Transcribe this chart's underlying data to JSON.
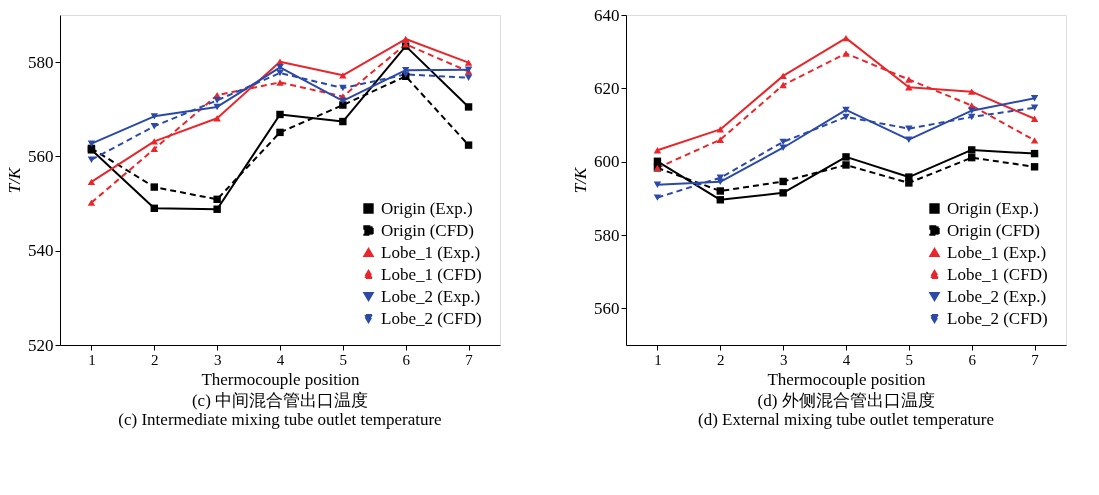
{
  "chart_data": [
    {
      "type": "line",
      "xlabel": "Thermocouple position",
      "ylabel": "T/K",
      "x": [
        1,
        2,
        3,
        4,
        5,
        6,
        7
      ],
      "xlim": [
        0.5,
        7.5
      ],
      "xticks": [
        1,
        2,
        3,
        4,
        5,
        6,
        7
      ],
      "ylim": [
        520,
        590
      ],
      "yticks": [
        520,
        540,
        560,
        580
      ],
      "grid": false,
      "legend": "bottom right",
      "annotations": [
        "(c) 中间混合管出口温度",
        "(c) Intermediate mixing tube outlet temperature"
      ],
      "series": [
        {
          "name": "Origin (Exp.)",
          "color": "#000000",
          "line_style": "solid",
          "marker": "square",
          "values": [
            561.4,
            549.0,
            548.8,
            568.9,
            567.4,
            583.4,
            570.5
          ]
        },
        {
          "name": "Origin (CFD)",
          "color": "#000000",
          "line_style": "dashed",
          "marker": "square",
          "values": [
            561.7,
            553.5,
            550.9,
            565.1,
            570.9,
            577.0,
            562.4
          ]
        },
        {
          "name": "Lobe_1 (Exp.)",
          "color": "#e8262b",
          "line_style": "solid",
          "marker": "triangle",
          "values": [
            554.6,
            563.2,
            568.1,
            580.1,
            577.2,
            584.9,
            579.9
          ]
        },
        {
          "name": "Lobe_1 (CFD)",
          "color": "#e8262b",
          "line_style": "dashed",
          "marker": "triangle",
          "values": [
            550.2,
            561.6,
            573.0,
            575.7,
            572.7,
            583.8,
            578.0
          ]
        },
        {
          "name": "Lobe_2 (Exp.)",
          "color": "#2b4aa8",
          "line_style": "solid",
          "marker": "triangle-down",
          "values": [
            562.7,
            568.5,
            570.5,
            578.9,
            571.8,
            578.3,
            578.4
          ]
        },
        {
          "name": "Lobe_2 (CFD)",
          "color": "#2b4aa8",
          "line_style": "dashed",
          "marker": "triangle-down",
          "values": [
            559.3,
            566.4,
            571.9,
            577.7,
            574.5,
            577.4,
            576.7
          ]
        }
      ]
    },
    {
      "type": "line",
      "xlabel": "Thermocouple position",
      "ylabel": "T/K",
      "x": [
        1,
        2,
        3,
        4,
        5,
        6,
        7
      ],
      "xlim": [
        0.5,
        7.5
      ],
      "xticks": [
        1,
        2,
        3,
        4,
        5,
        6,
        7
      ],
      "ylim": [
        550,
        640
      ],
      "yticks": [
        560,
        580,
        600,
        620,
        640
      ],
      "grid": false,
      "legend": "bottom right",
      "annotations": [
        "(d) 外侧混合管出口温度",
        "(d) External mixing tube outlet temperature"
      ],
      "series": [
        {
          "name": "Origin (Exp.)",
          "color": "#000000",
          "line_style": "solid",
          "marker": "square",
          "values": [
            600.1,
            589.6,
            591.5,
            601.3,
            595.8,
            603.2,
            602.2
          ]
        },
        {
          "name": "Origin (CFD)",
          "color": "#000000",
          "line_style": "dashed",
          "marker": "square",
          "values": [
            598.3,
            592.0,
            594.6,
            599.1,
            594.2,
            601.1,
            598.6
          ]
        },
        {
          "name": "Lobe_1 (Exp.)",
          "color": "#e8262b",
          "line_style": "solid",
          "marker": "triangle",
          "values": [
            603.1,
            608.8,
            623.4,
            633.7,
            620.3,
            619.1,
            611.7
          ]
        },
        {
          "name": "Lobe_1 (CFD)",
          "color": "#e8262b",
          "line_style": "dashed",
          "marker": "triangle",
          "values": [
            598.3,
            606.0,
            620.9,
            629.5,
            622.4,
            615.3,
            605.8
          ]
        },
        {
          "name": "Lobe_2 (Exp.)",
          "color": "#2b4aa8",
          "line_style": "solid",
          "marker": "triangle-down",
          "values": [
            593.7,
            594.5,
            603.8,
            614.1,
            606.0,
            613.9,
            617.3
          ]
        },
        {
          "name": "Lobe_2 (CFD)",
          "color": "#2b4aa8",
          "line_style": "dashed",
          "marker": "triangle-down",
          "values": [
            590.2,
            595.6,
            605.4,
            612.2,
            609.0,
            612.2,
            614.7
          ]
        }
      ]
    }
  ]
}
